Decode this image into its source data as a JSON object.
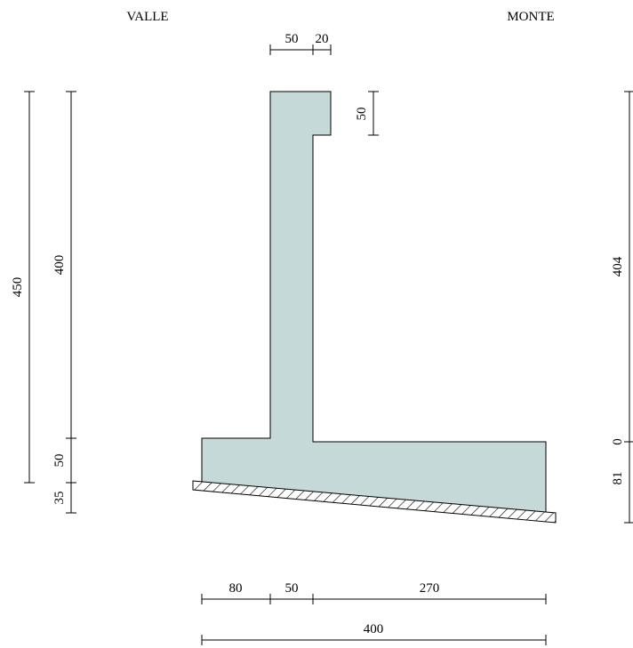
{
  "labels": {
    "downstream": "VALLE",
    "upstream": "MONTE"
  },
  "dimensions": {
    "top_stem_width": "50",
    "top_offset": "20",
    "top_step_height": "50",
    "total_height_left": "450",
    "stem_height_left": "400",
    "base_thickness_left": "50",
    "base_slope_left": "35",
    "stem_height_right": "404",
    "base_top_right": "0",
    "base_slope_right": "81",
    "toe_width": "80",
    "stem_width_bottom": "50",
    "heel_width": "270",
    "total_width": "400"
  },
  "colors": {
    "concrete_fill": "#c5d9d9",
    "outline": "#000000",
    "ground_fill": "#ffffff"
  }
}
